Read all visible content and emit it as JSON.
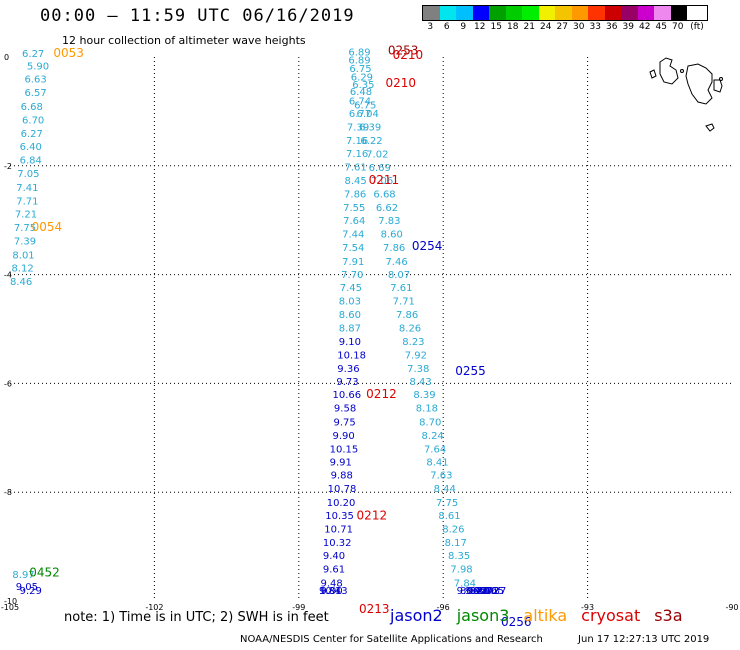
{
  "header": {
    "title": "00:00 – 11:59 UTC 06/16/2019",
    "subtitle": "12 hour collection of altimeter wave heights"
  },
  "scale": {
    "unit": "(ft)",
    "ticks": [
      "3",
      "6",
      "9",
      "12",
      "15",
      "18",
      "21",
      "24",
      "27",
      "30",
      "33",
      "36",
      "39",
      "42",
      "45",
      "70"
    ],
    "colors": [
      "#808080",
      "#00e5ee",
      "#00bfff",
      "#0000ff",
      "#00a000",
      "#00cc00",
      "#00ee00",
      "#f0f000",
      "#f4c400",
      "#ff9900",
      "#ff3300",
      "#cc0000",
      "#990066",
      "#cc00cc",
      "#ee88ee",
      "#000000"
    ]
  },
  "map": {
    "lon_range": [
      -105,
      -90
    ],
    "lat_range": [
      -10,
      0
    ],
    "x_ticks": [
      "-105",
      "-102",
      "-99",
      "-96",
      "-93",
      "-90"
    ],
    "y_ticks": [
      "0",
      "-2",
      "-4",
      "-6",
      "-8",
      "-10"
    ],
    "gridlines": true
  },
  "colors": {
    "cyan": "#2aaad4",
    "blue": "#0000cc",
    "orange": "#ff9900",
    "red": "#dd0000",
    "green": "#008800",
    "darkred": "#990000"
  },
  "tracks": [
    {
      "id": "track-0053",
      "color": "cyan",
      "points": [
        {
          "lon": -104.75,
          "lat": 0.0,
          "v": "6.27"
        },
        {
          "lon": -104.65,
          "lat": -0.23,
          "v": "5.90"
        },
        {
          "lon": -104.7,
          "lat": -0.47,
          "v": "6.63"
        },
        {
          "lon": -104.7,
          "lat": -0.72,
          "v": "6.57"
        },
        {
          "lon": -104.78,
          "lat": -0.97,
          "v": "6.68"
        },
        {
          "lon": -104.75,
          "lat": -1.22,
          "v": "6.70"
        },
        {
          "lon": -104.78,
          "lat": -1.47,
          "v": "6.27"
        },
        {
          "lon": -104.8,
          "lat": -1.71,
          "v": "6.40"
        },
        {
          "lon": -104.8,
          "lat": -1.96,
          "v": "6.84"
        },
        {
          "lon": -104.85,
          "lat": -2.21,
          "v": "7.05"
        },
        {
          "lon": -104.87,
          "lat": -2.46,
          "v": "7.41"
        },
        {
          "lon": -104.87,
          "lat": -2.71,
          "v": "7.71"
        },
        {
          "lon": -104.9,
          "lat": -2.95,
          "v": "7.21"
        },
        {
          "lon": -104.92,
          "lat": -3.2,
          "v": "7.75"
        },
        {
          "lon": -104.92,
          "lat": -3.45,
          "v": "7.39"
        },
        {
          "lon": -104.95,
          "lat": -3.7,
          "v": "8.01"
        },
        {
          "lon": -104.97,
          "lat": -3.94,
          "v": "8.12"
        },
        {
          "lon": -105.0,
          "lat": -4.19,
          "v": "8.46"
        }
      ]
    },
    {
      "id": "track-0452",
      "color": "cyan",
      "points": [
        {
          "lon": -104.95,
          "lat": -9.58,
          "v": "8.97"
        }
      ]
    },
    {
      "id": "track-0452-blue",
      "color": "blue",
      "points": [
        {
          "lon": -104.88,
          "lat": -9.8,
          "v": "9.05"
        },
        {
          "lon": -104.8,
          "lat": -10.02,
          "v": "9.29"
        }
      ]
    },
    {
      "id": "track-0210",
      "color": "cyan",
      "points": [
        {
          "lon": -97.97,
          "lat": 0.03,
          "v": "6.89"
        },
        {
          "lon": -97.97,
          "lat": -0.12,
          "v": "6.89"
        },
        {
          "lon": -97.95,
          "lat": -0.28,
          "v": "6.75"
        },
        {
          "lon": -97.92,
          "lat": -0.43,
          "v": "6.29"
        },
        {
          "lon": -97.89,
          "lat": -0.57,
          "v": "6.35"
        },
        {
          "lon": -97.94,
          "lat": -0.7,
          "v": "6.48"
        },
        {
          "lon": -97.96,
          "lat": -0.87,
          "v": "6.74"
        },
        {
          "lon": -97.96,
          "lat": -1.1,
          "v": "6.77"
        },
        {
          "lon": -98.0,
          "lat": -1.35,
          "v": "7.39"
        },
        {
          "lon": -98.02,
          "lat": -1.6,
          "v": "7.16"
        },
        {
          "lon": -98.02,
          "lat": -1.84,
          "v": "7.16"
        },
        {
          "lon": -98.05,
          "lat": -2.09,
          "v": "7.61"
        },
        {
          "lon": -98.05,
          "lat": -2.33,
          "v": "8.45"
        },
        {
          "lon": -98.06,
          "lat": -2.58,
          "v": "7.86"
        },
        {
          "lon": -98.08,
          "lat": -2.83,
          "v": "7.55"
        },
        {
          "lon": -98.08,
          "lat": -3.07,
          "v": "7.64"
        },
        {
          "lon": -98.1,
          "lat": -3.32,
          "v": "7.44"
        },
        {
          "lon": -98.1,
          "lat": -3.57,
          "v": "7.54"
        },
        {
          "lon": -98.1,
          "lat": -3.82,
          "v": "7.91"
        },
        {
          "lon": -98.12,
          "lat": -4.06,
          "v": "7.70"
        },
        {
          "lon": -98.15,
          "lat": -4.3,
          "v": "7.45"
        },
        {
          "lon": -98.17,
          "lat": -4.55,
          "v": "8.03"
        },
        {
          "lon": -98.17,
          "lat": -4.8,
          "v": "8.60"
        },
        {
          "lon": -98.17,
          "lat": -5.05,
          "v": "8.87"
        }
      ]
    },
    {
      "id": "track-0212-blue",
      "color": "blue",
      "points": [
        {
          "lon": -98.17,
          "lat": -5.29,
          "v": "9.10"
        },
        {
          "lon": -98.2,
          "lat": -5.54,
          "v": "10.18"
        },
        {
          "lon": -98.2,
          "lat": -5.79,
          "v": "9.36"
        },
        {
          "lon": -98.22,
          "lat": -6.03,
          "v": "9.73"
        },
        {
          "lon": -98.3,
          "lat": -6.27,
          "v": "10.66"
        },
        {
          "lon": -98.27,
          "lat": -6.52,
          "v": "9.58"
        },
        {
          "lon": -98.28,
          "lat": -6.77,
          "v": "9.75"
        },
        {
          "lon": -98.3,
          "lat": -7.02,
          "v": "9.90"
        },
        {
          "lon": -98.36,
          "lat": -7.27,
          "v": "10.15"
        },
        {
          "lon": -98.36,
          "lat": -7.51,
          "v": "9.91"
        },
        {
          "lon": -98.34,
          "lat": -7.75,
          "v": "9.88"
        },
        {
          "lon": -98.4,
          "lat": -8.0,
          "v": "10.78"
        },
        {
          "lon": -98.42,
          "lat": -8.25,
          "v": "10.20"
        },
        {
          "lon": -98.45,
          "lat": -8.49,
          "v": "10.35"
        },
        {
          "lon": -98.47,
          "lat": -8.74,
          "v": "10.71"
        },
        {
          "lon": -98.5,
          "lat": -8.99,
          "v": "10.32"
        },
        {
          "lon": -98.5,
          "lat": -9.23,
          "v": "9.40"
        },
        {
          "lon": -98.5,
          "lat": -9.48,
          "v": "9.61"
        },
        {
          "lon": -98.55,
          "lat": -9.73,
          "v": "9.48"
        },
        {
          "lon": -98.58,
          "lat": -9.97,
          "v": "10.13"
        },
        {
          "lon": -98.55,
          "lat": -10.22,
          "v": "9.90"
        },
        {
          "lon": -98.58,
          "lat": -10.46,
          "v": "9.84"
        }
      ]
    },
    {
      "id": "track-0253",
      "color": "cyan",
      "points": [
        {
          "lon": -97.85,
          "lat": -0.95,
          "v": "6.75"
        },
        {
          "lon": -97.8,
          "lat": -1.1,
          "v": "6.04"
        },
        {
          "lon": -97.75,
          "lat": -1.35,
          "v": "6.39"
        },
        {
          "lon": -97.72,
          "lat": -1.6,
          "v": "6.22"
        },
        {
          "lon": -97.6,
          "lat": -1.85,
          "v": "7.02"
        },
        {
          "lon": -97.55,
          "lat": -2.1,
          "v": "6.69"
        },
        {
          "lon": -97.5,
          "lat": -2.33,
          "v": "7.06"
        },
        {
          "lon": -97.45,
          "lat": -2.58,
          "v": "6.68"
        },
        {
          "lon": -97.4,
          "lat": -2.83,
          "v": "6.62"
        },
        {
          "lon": -97.35,
          "lat": -3.07,
          "v": "7.83"
        },
        {
          "lon": -97.3,
          "lat": -3.32,
          "v": "8.60"
        },
        {
          "lon": -97.25,
          "lat": -3.57,
          "v": "7.86"
        },
        {
          "lon": -97.2,
          "lat": -3.82,
          "v": "7.46"
        },
        {
          "lon": -97.15,
          "lat": -4.06,
          "v": "8.07"
        },
        {
          "lon": -97.1,
          "lat": -4.3,
          "v": "7.61"
        },
        {
          "lon": -97.05,
          "lat": -4.55,
          "v": "7.71"
        },
        {
          "lon": -96.98,
          "lat": -4.8,
          "v": "7.86"
        },
        {
          "lon": -96.92,
          "lat": -5.05,
          "v": "8.26"
        },
        {
          "lon": -96.85,
          "lat": -5.29,
          "v": "8.23"
        },
        {
          "lon": -96.8,
          "lat": -5.54,
          "v": "7.92"
        },
        {
          "lon": -96.75,
          "lat": -5.79,
          "v": "7.38"
        },
        {
          "lon": -96.7,
          "lat": -6.03,
          "v": "8.43"
        },
        {
          "lon": -96.62,
          "lat": -6.27,
          "v": "8.39"
        },
        {
          "lon": -96.57,
          "lat": -6.52,
          "v": "8.18"
        },
        {
          "lon": -96.5,
          "lat": -6.77,
          "v": "8.70"
        },
        {
          "lon": -96.45,
          "lat": -7.02,
          "v": "8.24"
        },
        {
          "lon": -96.4,
          "lat": -7.27,
          "v": "7.64"
        },
        {
          "lon": -96.35,
          "lat": -7.51,
          "v": "8.41"
        },
        {
          "lon": -96.27,
          "lat": -7.75,
          "v": "7.63"
        },
        {
          "lon": -96.2,
          "lat": -8.0,
          "v": "8.44"
        },
        {
          "lon": -96.15,
          "lat": -8.25,
          "v": "7.75"
        },
        {
          "lon": -96.1,
          "lat": -8.49,
          "v": "8.61"
        },
        {
          "lon": -96.02,
          "lat": -8.74,
          "v": "8.26"
        },
        {
          "lon": -95.97,
          "lat": -8.99,
          "v": "8.17"
        },
        {
          "lon": -95.9,
          "lat": -9.23,
          "v": "8.35"
        },
        {
          "lon": -95.85,
          "lat": -9.48,
          "v": "7.98"
        },
        {
          "lon": -95.78,
          "lat": -9.73,
          "v": "7.84"
        }
      ]
    },
    {
      "id": "track-0256",
      "color": "blue",
      "points": [
        {
          "lon": -95.72,
          "lat": -9.97,
          "v": "9.06"
        },
        {
          "lon": -95.65,
          "lat": -10.22,
          "v": "8.87"
        },
        {
          "lon": -95.55,
          "lat": -10.46,
          "v": "9.47"
        },
        {
          "lon": -95.5,
          "lat": -10.7,
          "v": "9.20"
        },
        {
          "lon": -95.45,
          "lat": -10.95,
          "v": "8.63"
        },
        {
          "lon": -95.35,
          "lat": -11.2,
          "v": "9.40"
        },
        {
          "lon": -95.3,
          "lat": -11.44,
          "v": "8.72"
        },
        {
          "lon": -95.2,
          "lat": -11.68,
          "v": "8.65"
        },
        {
          "lon": -95.15,
          "lat": -11.93,
          "v": "8.37"
        }
      ]
    }
  ],
  "pass_labels": [
    {
      "text": "0053",
      "color": "orange",
      "lon": -104.1,
      "lat": 0.0
    },
    {
      "text": "0054",
      "color": "orange",
      "lon": -104.55,
      "lat": -3.2
    },
    {
      "text": "0452",
      "color": "green",
      "lon": -104.6,
      "lat": -9.55
    },
    {
      "text": "0253",
      "color": "darkred",
      "lon": -97.15,
      "lat": 0.05
    },
    {
      "text": "0210",
      "color": "red",
      "lon": -97.05,
      "lat": -0.04
    },
    {
      "text": "0210",
      "color": "red",
      "lon": -97.2,
      "lat": -0.55
    },
    {
      "text": "0211",
      "color": "red",
      "lon": -97.55,
      "lat": -2.33
    },
    {
      "text": "0254",
      "color": "blue",
      "lon": -96.65,
      "lat": -3.55
    },
    {
      "text": "0212",
      "color": "red",
      "lon": -97.6,
      "lat": -6.27
    },
    {
      "text": "0255",
      "color": "blue",
      "lon": -95.75,
      "lat": -5.85
    },
    {
      "text": "0212",
      "color": "red",
      "lon": -97.8,
      "lat": -8.5
    },
    {
      "text": "0256",
      "color": "blue",
      "lon": -94.8,
      "lat": -10.46
    },
    {
      "text": "0213",
      "color": "red",
      "lon": -97.75,
      "lat": -10.22
    }
  ],
  "note": "note:  1) Time is in UTC;  2) SWH is in feet",
  "legend": [
    {
      "name": "jason2",
      "color": "#0000cc"
    },
    {
      "name": "jason3",
      "color": "#008800"
    },
    {
      "name": "altika",
      "color": "#ff9900"
    },
    {
      "name": "cryosat",
      "color": "#dd0000"
    },
    {
      "name": "s3a",
      "color": "#990000"
    }
  ],
  "footer": {
    "credit": "NOAA/NESDIS Center for Satellite Applications and Research",
    "timestamp": "Jun 17 12:27:13 UTC 2019"
  }
}
